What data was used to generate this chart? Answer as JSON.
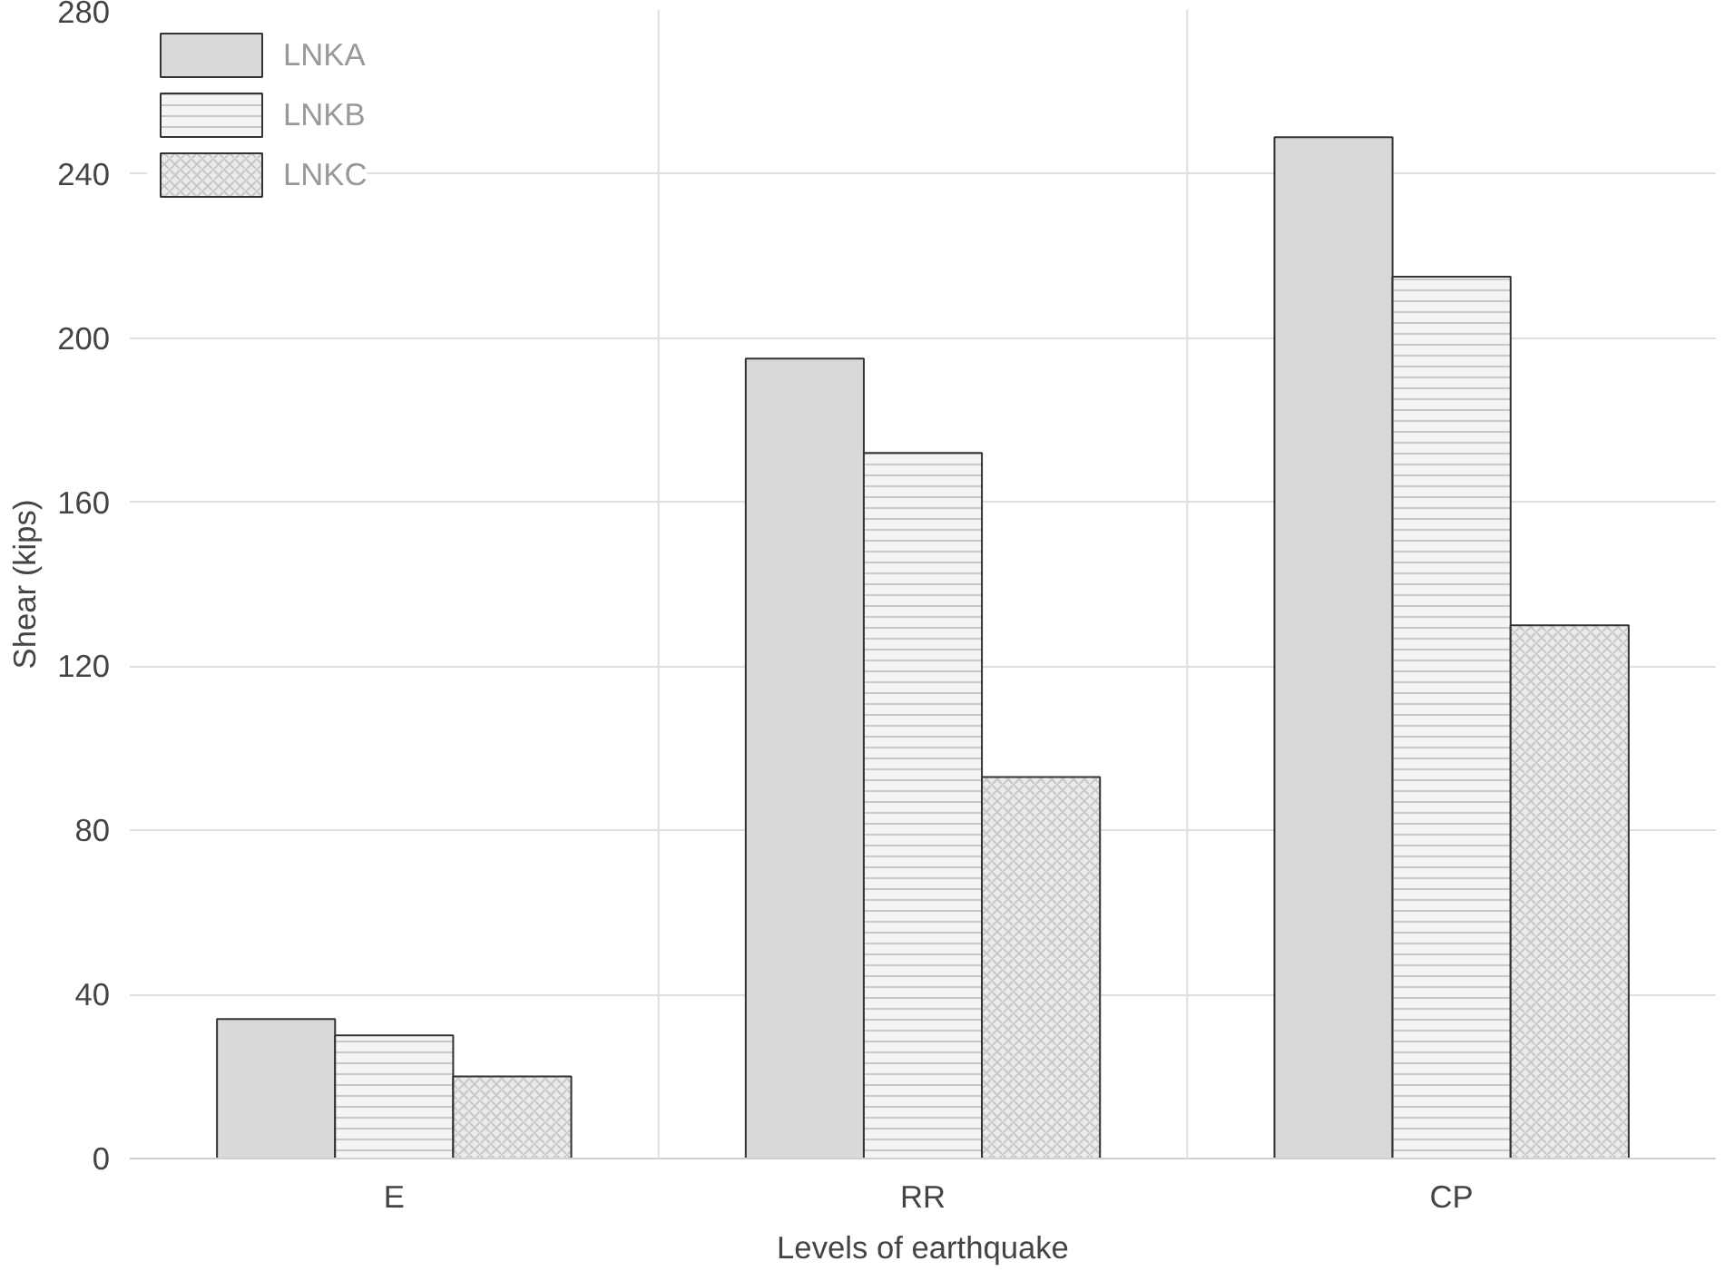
{
  "chart_data": {
    "type": "bar",
    "xlabel": "Levels of earthquake",
    "ylabel": "Shear (kips)",
    "categories": [
      "E",
      "RR",
      "CP"
    ],
    "series": [
      {
        "name": "LNKA",
        "color": "#d9d9d9",
        "values": [
          34,
          195,
          249
        ]
      },
      {
        "name": "LNKB",
        "color": "#f4f4f4",
        "values": [
          30,
          172,
          215
        ]
      },
      {
        "name": "LNKC",
        "color": "#ebebeb",
        "values": [
          20,
          93,
          130
        ]
      }
    ],
    "ylim": [
      0,
      280
    ],
    "yticks": [
      0,
      40,
      80,
      120,
      160,
      200,
      240,
      280
    ],
    "grid": true,
    "legend": "top left"
  }
}
